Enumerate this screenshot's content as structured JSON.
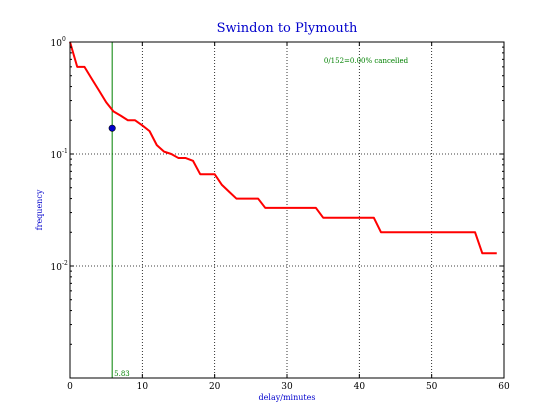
{
  "chart_data": {
    "type": "line",
    "title": "Swindon to Plymouth",
    "xlabel": "delay/minutes",
    "ylabel": "frequency",
    "xlim": [
      0,
      60
    ],
    "ylim": [
      0.001,
      1
    ],
    "yscale": "log",
    "grid": true,
    "x_ticks": [
      "0",
      "10",
      "20",
      "30",
      "40",
      "50",
      "60"
    ],
    "y_ticks": [
      {
        "base": "10",
        "exp": "0",
        "value": 1
      },
      {
        "base": "10",
        "exp": "-1",
        "value": 0.1
      },
      {
        "base": "10",
        "exp": "-2",
        "value": 0.01
      }
    ],
    "annotation": "0/152=0.00% cancelled",
    "vline": {
      "x": 5.83,
      "label": "5.83",
      "color": "#008000"
    },
    "marker": {
      "x": 5.83,
      "y": 0.17,
      "color": "#0000cc"
    },
    "series": [
      {
        "color": "#ff0000",
        "points": [
          [
            0,
            1.0
          ],
          [
            1,
            0.6
          ],
          [
            2,
            0.6
          ],
          [
            3,
            0.47
          ],
          [
            4,
            0.37
          ],
          [
            5,
            0.29
          ],
          [
            6,
            0.24
          ],
          [
            7,
            0.22
          ],
          [
            8,
            0.2
          ],
          [
            9,
            0.2
          ],
          [
            10,
            0.18
          ],
          [
            11,
            0.16
          ],
          [
            12,
            0.12
          ],
          [
            13,
            0.105
          ],
          [
            14,
            0.1
          ],
          [
            15,
            0.092
          ],
          [
            16,
            0.092
          ],
          [
            17,
            0.087
          ],
          [
            18,
            0.066
          ],
          [
            19,
            0.066
          ],
          [
            20,
            0.066
          ],
          [
            21,
            0.053
          ],
          [
            22,
            0.046
          ],
          [
            23,
            0.04
          ],
          [
            24,
            0.04
          ],
          [
            25,
            0.04
          ],
          [
            26,
            0.04
          ],
          [
            27,
            0.033
          ],
          [
            34,
            0.033
          ],
          [
            35,
            0.027
          ],
          [
            42,
            0.027
          ],
          [
            43,
            0.02
          ],
          [
            56,
            0.02
          ],
          [
            57,
            0.013
          ],
          [
            59,
            0.013
          ]
        ]
      }
    ]
  }
}
